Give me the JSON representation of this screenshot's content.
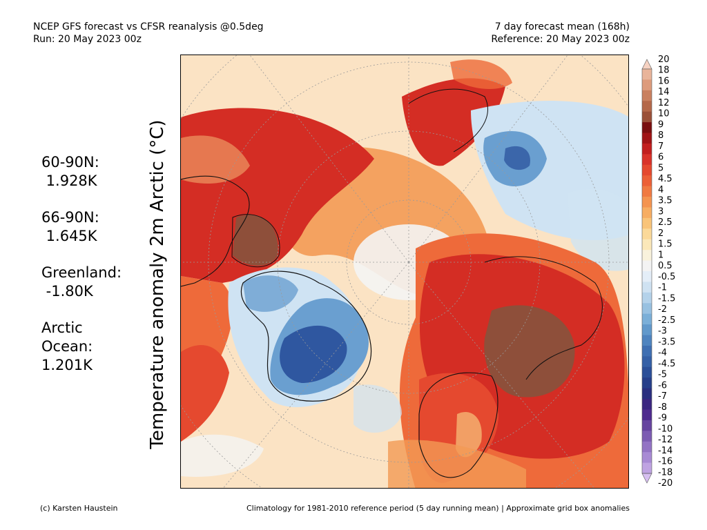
{
  "header": {
    "left_line1": "NCEP GFS forecast vs CFSR reanalysis @0.5deg",
    "left_line2": "Run: 20 May 2023 00z",
    "right_line1": "7 day forecast mean (168h)",
    "right_line2": "Reference: 20 May 2023 00z"
  },
  "axis_label": "Temperature anomaly 2m Arctic (°C)",
  "stats": [
    {
      "region_lines": [
        "60-90N:"
      ],
      "value": " 1.928K"
    },
    {
      "region_lines": [
        "66-90N:"
      ],
      "value": " 1.645K"
    },
    {
      "region_lines": [
        "Greenland:"
      ],
      "value": " -1.80K"
    },
    {
      "region_lines": [
        "Arctic",
        "Ocean:"
      ],
      "value": "1.201K"
    }
  ],
  "colorbar": {
    "labels": [
      "20",
      "18",
      "16",
      "14",
      "12",
      "10",
      "9",
      "8",
      "7",
      "6",
      "5",
      "4.5",
      "4",
      "3.5",
      "3",
      "2.5",
      "2",
      "1.5",
      "1",
      "0.5",
      "-0.5",
      "-1",
      "-1.5",
      "-2",
      "-2.5",
      "-3",
      "-3.5",
      "-4",
      "-4.5",
      "-5",
      "-6",
      "-7",
      "-8",
      "-9",
      "-10",
      "-12",
      "-14",
      "-16",
      "-18",
      "-20"
    ],
    "colors": [
      "#f6d2c2",
      "#e9b49a",
      "#dd9b7c",
      "#c9805f",
      "#b4684a",
      "#9a5038",
      "#7a0f10",
      "#a01416",
      "#c21f1f",
      "#d9332a",
      "#e5492f",
      "#ec6037",
      "#f07a42",
      "#f49450",
      "#f7ad62",
      "#f9c479",
      "#fbd999",
      "#fbe8b9",
      "#f9f2dc",
      "#f3f3f3",
      "#e4eef8",
      "#cfe2f2",
      "#b4d2ea",
      "#98c1e1",
      "#7bafd8",
      "#6299cb",
      "#4f84bf",
      "#3f6fb2",
      "#3560a6",
      "#2b4f98",
      "#263f8a",
      "#2a2f7f",
      "#3a2680",
      "#4e2a8e",
      "#66449f",
      "#7c5cb2",
      "#9373c4",
      "#a88ad4",
      "#bfa3e2",
      "#d6bff0"
    ]
  },
  "map": {
    "colors": {
      "ocean_neutral": "#fbe3c4",
      "warm_strong": "#d42d24",
      "warm": "#ee6a3a",
      "warm_mid": "#f39a55",
      "warm_light": "#f8c47c",
      "extreme": "#8e4f3a",
      "cold_light": "#cfe3f3",
      "cold": "#6a9fd0",
      "cold_strong": "#2f57a0",
      "neutral": "#f4f4f4"
    }
  },
  "footer": {
    "left": "(c) Karsten Haustein",
    "right": "Climatology for 1981-2010 reference period (5 day running mean) | Approximate grid box anomalies"
  }
}
